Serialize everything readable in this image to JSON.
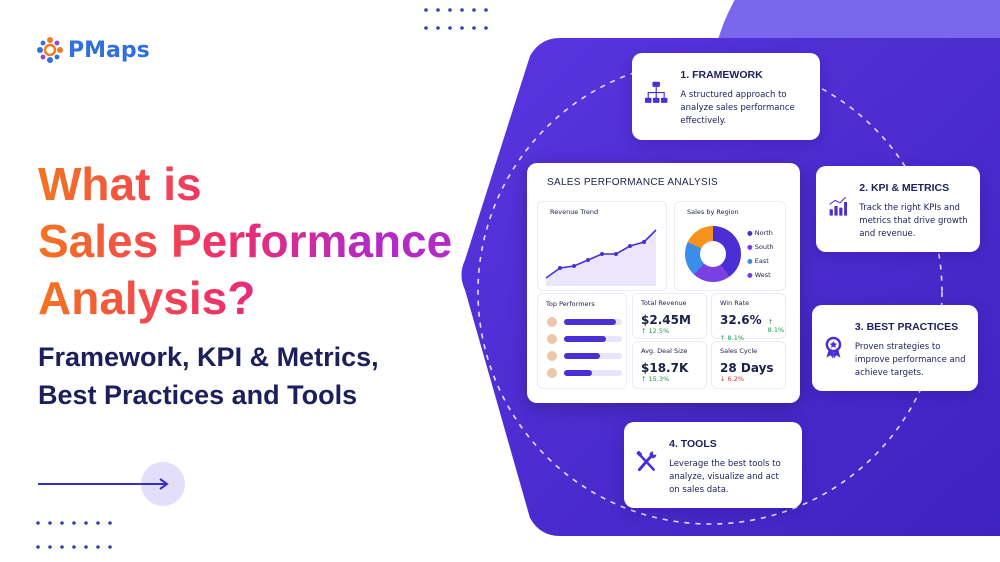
{
  "logo": "PMaps",
  "headline": {
    "lines": [
      "What is",
      "Sales Performance",
      "Analysis?"
    ]
  },
  "subheadline": {
    "lines": [
      "Framework, KPI & Metrics,",
      "Best Practices and Tools"
    ]
  },
  "dashboard": {
    "title": "SALES PERFORMANCE ANALYSIS",
    "revenue_trend": "Revenue Trend",
    "sales_by_region": {
      "title": "Sales by Region",
      "legend": [
        "North",
        "South",
        "East",
        "West"
      ]
    },
    "top_performers": "Top Performers",
    "kpis": [
      {
        "label": "Total Revenue",
        "value": "$2.45M",
        "change": "↑ 12.5%"
      },
      {
        "label": "Win Rate",
        "value": "32.6%",
        "badge": "↑ 8.1%",
        "change": "↑ 8.1%"
      },
      {
        "label": "Avg. Deal Size",
        "value": "$18.7K",
        "change": "↑ 15.3%"
      },
      {
        "label": "Sales Cycle",
        "value": "28 Days",
        "change": "↓ 6.2%"
      }
    ]
  },
  "cards": [
    {
      "title": "1. FRAMEWORK",
      "text": "A structured approach to analyze sales performance effectively."
    },
    {
      "title": "2. KPI & METRICS",
      "text": "Track the right KPIs and metrics that drive growth and revenue."
    },
    {
      "title": "3. BEST PRACTICES",
      "text": "Proven strategies to improve performance and achieve targets."
    },
    {
      "title": "4. TOOLS",
      "text": "Leverage the best tools to analyze, visualize and act on sales data."
    }
  ]
}
